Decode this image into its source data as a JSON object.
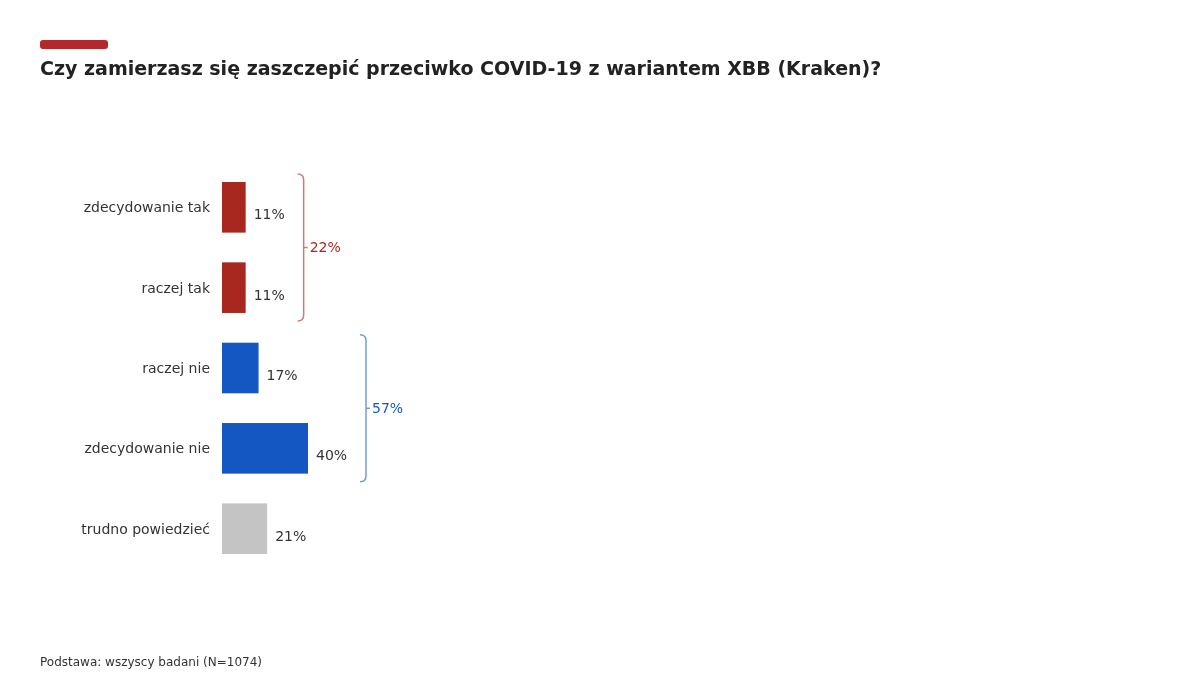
{
  "chart_data": {
    "type": "bar",
    "orientation": "horizontal",
    "title": "Czy zamierzasz się zaszczepić przeciwko COVID-19 z wariantem XBB (Kraken)?",
    "categories": [
      "zdecydowanie tak",
      "raczej tak",
      "raczej nie",
      "zdecydowanie nie",
      "trudno powiedzieć"
    ],
    "values": [
      11,
      11,
      17,
      40,
      21
    ],
    "colors": [
      "#a8281f",
      "#a8281f",
      "#1457c2",
      "#1457c2",
      "#c4c4c4"
    ],
    "value_labels": [
      "11%",
      "11%",
      "17%",
      "40%",
      "21%"
    ],
    "annotations": [
      "22%",
      "57%",
      "Podstawa: wszyscy badani (N=1074)"
    ]
  }
}
